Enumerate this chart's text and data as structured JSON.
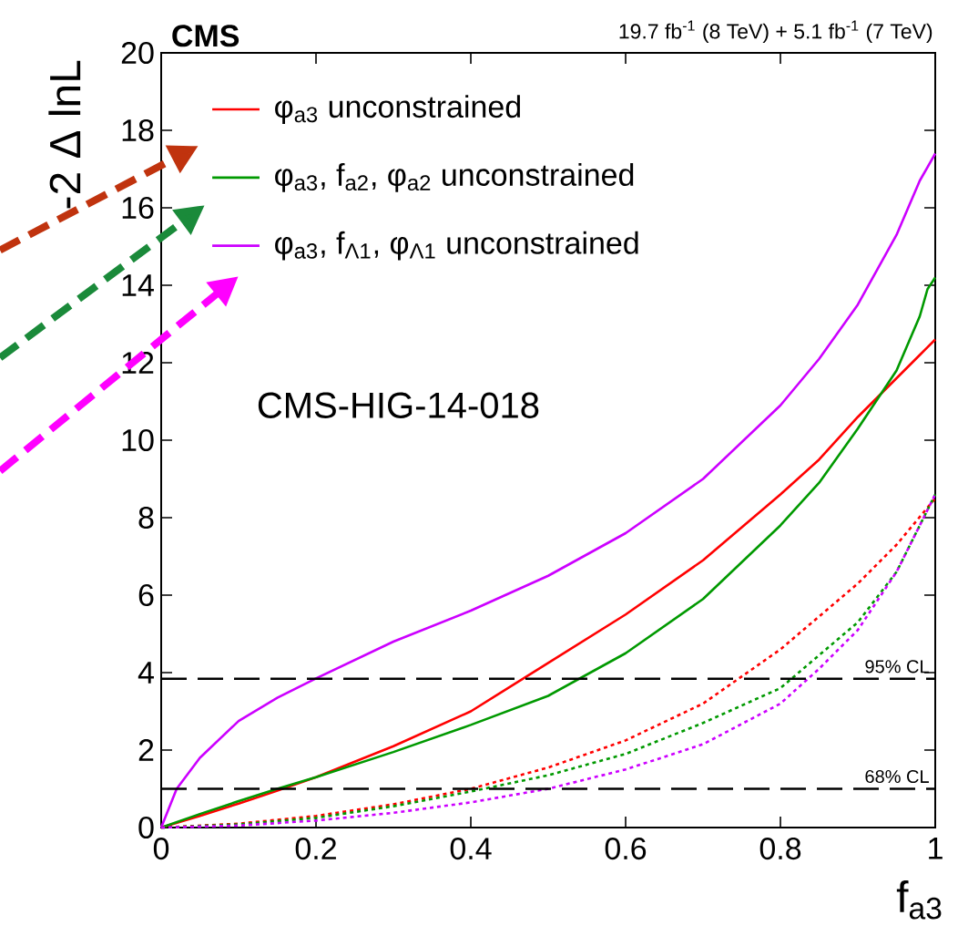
{
  "chart_data": {
    "type": "line",
    "title": "**CMS**",
    "subtitle": "19.7 fb$^{-1}$ (8 TeV) + 5.1 fb$^{-1}$ (7 TeV)",
    "xlabel": "f$_{a3}$",
    "ylabel": "-2 Δ lnL",
    "annotations": [
      "CMS-HIG-14-018"
    ],
    "xlim": [
      0,
      1
    ],
    "ylim": [
      0,
      20
    ],
    "xticks": [
      0,
      0.2,
      0.4,
      0.6,
      0.8,
      1
    ],
    "yticks": [
      0,
      2,
      4,
      6,
      8,
      10,
      12,
      14,
      16,
      18,
      20
    ],
    "legend": "top left",
    "ref_lines": [
      {
        "axis": "y",
        "value": 3.84,
        "label": "95% CL",
        "color": "#000000",
        "line_style": "dashed"
      },
      {
        "axis": "y",
        "value": 1,
        "label": "68% CL",
        "color": "#000000",
        "line_style": "dashed"
      }
    ],
    "series": [
      {
        "name": "φ$_{a3}$ unconstrained",
        "color": "#ff0000",
        "line_style": "solid",
        "x": [
          0,
          0.05,
          0.1,
          0.15,
          0.2,
          0.3,
          0.4,
          0.5,
          0.6,
          0.7,
          0.8,
          0.85,
          0.9,
          0.95,
          0.98,
          1
        ],
        "values": [
          0,
          0.3,
          0.62,
          0.95,
          1.3,
          2.1,
          3.0,
          4.25,
          5.5,
          6.9,
          8.6,
          9.5,
          10.6,
          11.6,
          12.2,
          12.6
        ]
      },
      {
        "name": "φ$_{a3}$, f$_{a2}$, φ$_{a2}$ unconstrained",
        "color": "#009900",
        "line_style": "solid",
        "x": [
          0,
          0.05,
          0.1,
          0.15,
          0.2,
          0.3,
          0.4,
          0.5,
          0.6,
          0.7,
          0.8,
          0.85,
          0.9,
          0.95,
          0.98,
          0.99,
          1
        ],
        "values": [
          0,
          0.35,
          0.68,
          1.0,
          1.3,
          1.95,
          2.65,
          3.4,
          4.5,
          5.9,
          7.8,
          8.9,
          10.3,
          11.8,
          13.2,
          13.9,
          14.2
        ]
      },
      {
        "name": "φ$_{a3}$, f$_{Λ1}$, φ$_{Λ1}$ unconstrained",
        "color": "#cc00ff",
        "line_style": "solid",
        "x": [
          0,
          0.02,
          0.05,
          0.1,
          0.15,
          0.2,
          0.3,
          0.4,
          0.5,
          0.6,
          0.7,
          0.8,
          0.85,
          0.9,
          0.95,
          0.98,
          1
        ],
        "values": [
          0,
          1.0,
          1.8,
          2.75,
          3.35,
          3.85,
          4.8,
          5.6,
          6.5,
          7.6,
          9.0,
          10.9,
          12.1,
          13.5,
          15.3,
          16.7,
          17.4
        ]
      },
      {
        "color": "#ff0000",
        "line_style": "dotted",
        "x": [
          0,
          0.1,
          0.2,
          0.3,
          0.4,
          0.5,
          0.6,
          0.7,
          0.8,
          0.9,
          0.95,
          1
        ],
        "values": [
          0,
          0.1,
          0.3,
          0.6,
          1.0,
          1.55,
          2.25,
          3.2,
          4.6,
          6.3,
          7.3,
          8.5
        ]
      },
      {
        "color": "#009900",
        "line_style": "dotted",
        "x": [
          0,
          0.1,
          0.2,
          0.3,
          0.4,
          0.5,
          0.6,
          0.7,
          0.8,
          0.9,
          0.95,
          1
        ],
        "values": [
          0,
          0.08,
          0.25,
          0.55,
          0.93,
          1.35,
          1.9,
          2.7,
          3.6,
          5.3,
          6.6,
          8.6
        ]
      },
      {
        "color": "#cc00ff",
        "line_style": "dotted",
        "x": [
          0,
          0.1,
          0.2,
          0.3,
          0.4,
          0.5,
          0.6,
          0.7,
          0.8,
          0.85,
          0.9,
          0.95,
          1
        ],
        "values": [
          0,
          0.05,
          0.18,
          0.38,
          0.65,
          1.0,
          1.5,
          2.15,
          3.2,
          4.1,
          5.1,
          6.6,
          8.6
        ]
      }
    ]
  }
}
